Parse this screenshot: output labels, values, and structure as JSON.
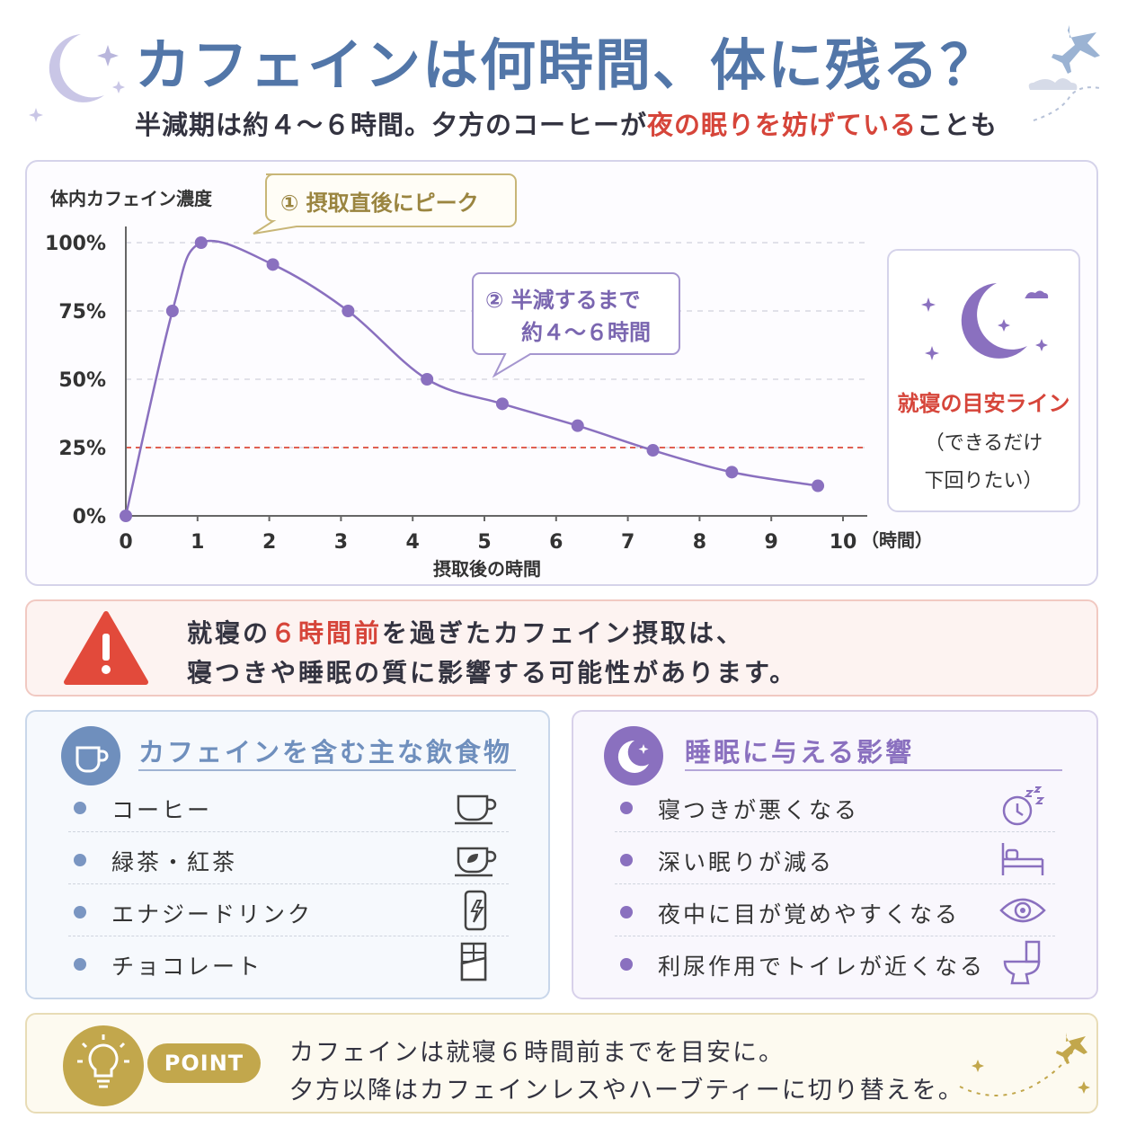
{
  "header": {
    "title": "カフェインは何時間、体に残る？",
    "subtitle_pre": "半減期は約４～６時間。夕方のコーヒーが",
    "subtitle_red": "夜の眠りを妨げている",
    "subtitle_post": "ことも"
  },
  "chart_data": {
    "type": "line",
    "ylabel": "体内カフェイン濃度",
    "xlabel": "摂取後の時間",
    "x_unit": "（時間）",
    "xlim": [
      0,
      10
    ],
    "ylim": [
      0,
      100
    ],
    "x_ticks": [
      "0",
      "1",
      "2",
      "3",
      "4",
      "5",
      "6",
      "7",
      "8",
      "9",
      "10"
    ],
    "y_ticks": [
      "0%",
      "25%",
      "50%",
      "75%",
      "100%"
    ],
    "x_tick_values": [
      0,
      1,
      2,
      3,
      4,
      5,
      6,
      7,
      8,
      9,
      10
    ],
    "y_tick_values": [
      0,
      25,
      50,
      75,
      100
    ],
    "grid": "horizontal dashed",
    "series": [
      {
        "x": [
          0,
          0.65,
          1.05,
          2.05,
          3.1,
          4.2,
          5.25,
          6.3,
          7.35,
          8.45,
          9.65
        ],
        "y": [
          0,
          75,
          100,
          92,
          75,
          50,
          41,
          33,
          24,
          16,
          11
        ],
        "color": "#8a70bf"
      }
    ],
    "reference_line": {
      "y": 25,
      "color": "#e06052"
    },
    "callouts": {
      "peak": "① 摂取直後にピーク",
      "half_line1": "② 半減するまで",
      "half_line2": "約４～６時間"
    }
  },
  "bedtime": {
    "title": "就寝の目安ライン",
    "note_line1": "（できるだけ",
    "note_line2": "下回りたい）"
  },
  "warning": {
    "line1_pre": "就寝の",
    "line1_red": "６時間前",
    "line1_post": "を過ぎたカフェイン摂取は、",
    "line2": "寝つきや睡眠の質に影響する可能性があります。"
  },
  "drinks": {
    "title": "カフェインを含む主な飲食物",
    "items": [
      {
        "label": "コーヒー",
        "icon": "coffee-cup-icon"
      },
      {
        "label": "緑茶・紅茶",
        "icon": "tea-cup-icon"
      },
      {
        "label": "エナジードリンク",
        "icon": "energy-drink-can-icon"
      },
      {
        "label": "チョコレート",
        "icon": "chocolate-bar-icon"
      }
    ],
    "accent": "#6f8fbd"
  },
  "sleep": {
    "title": "睡眠に与える影響",
    "items": [
      {
        "label": "寝つきが悪くなる",
        "icon": "clock-zzz-icon"
      },
      {
        "label": "深い眠りが減る",
        "icon": "bed-icon"
      },
      {
        "label": "夜中に目が覚めやすくなる",
        "icon": "eye-icon"
      },
      {
        "label": "利尿作用でトイレが近くなる",
        "icon": "toilet-icon"
      }
    ],
    "accent": "#8a70bf"
  },
  "point": {
    "badge": "POINT",
    "line1": "カフェインは就寝６時間前までを目安に。",
    "line2": "夕方以降はカフェインレスやハーブティーに切り替えを。",
    "accent": "#c2a74c"
  }
}
